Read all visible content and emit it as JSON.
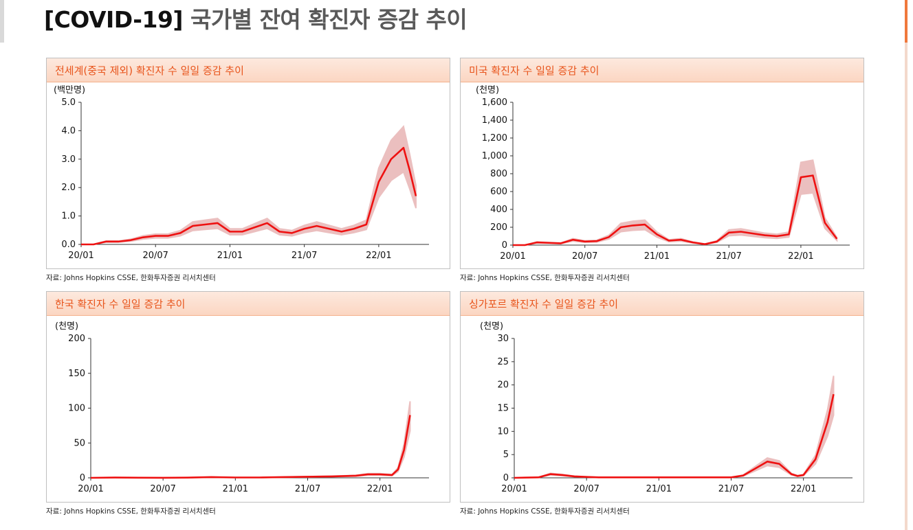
{
  "page": {
    "title_tag": "[COVID-19]",
    "title_rest": "국가별 잔여 확진자 증감 추이"
  },
  "colors": {
    "accent": "#f0783c",
    "line": "#ee1111",
    "band": "#e8b4b4",
    "title": "#e8541b"
  },
  "chart_data": [
    {
      "type": "line",
      "title": "전세계(중국 제외) 확진자 수 일일 증감 추이",
      "ylabel": "(백만명)",
      "ylim": [
        0,
        5
      ],
      "yticks": [
        "0.0",
        "1.0",
        "2.0",
        "3.0",
        "4.0",
        "5.0"
      ],
      "xticks": [
        "20/01",
        "20/07",
        "21/01",
        "21/07",
        "22/01"
      ],
      "source": "자료: Johns Hopkins CSSE, 한화투자증권 리서치센터",
      "series": [
        {
          "name": "",
          "x": [
            0,
            1,
            2,
            3,
            4,
            5,
            6,
            7,
            8,
            9,
            10,
            11,
            12,
            13,
            14,
            15,
            16,
            17,
            18,
            19,
            20,
            21,
            22,
            23,
            24,
            25,
            26,
            26.5,
            27
          ],
          "values": [
            0,
            0,
            0.1,
            0.1,
            0.15,
            0.25,
            0.3,
            0.3,
            0.4,
            0.65,
            0.7,
            0.75,
            0.45,
            0.45,
            0.6,
            0.75,
            0.45,
            0.4,
            0.55,
            0.65,
            0.55,
            0.45,
            0.55,
            0.7,
            2.2,
            3.0,
            3.4,
            2.6,
            1.7
          ]
        }
      ]
    },
    {
      "type": "line",
      "title": "미국 확진자 수 일일 증감 추이",
      "ylabel": "(천명)",
      "ylim": [
        0,
        1600
      ],
      "yticks": [
        "0",
        "200",
        "400",
        "600",
        "800",
        "1,000",
        "1,200",
        "1,400",
        "1,600"
      ],
      "xticks": [
        "20/01",
        "20/07",
        "21/01",
        "21/07",
        "22/01"
      ],
      "source": "자료: Johns Hopkins CSSE, 한화투자증권 리서치센터",
      "series": [
        {
          "name": "",
          "x": [
            0,
            1,
            2,
            3,
            4,
            5,
            6,
            7,
            8,
            9,
            10,
            11,
            12,
            13,
            14,
            15,
            16,
            17,
            18,
            19,
            20,
            21,
            22,
            23,
            24,
            25,
            26,
            27
          ],
          "values": [
            0,
            0,
            30,
            25,
            20,
            60,
            40,
            45,
            90,
            200,
            220,
            230,
            120,
            50,
            60,
            30,
            10,
            40,
            140,
            150,
            130,
            110,
            100,
            120,
            760,
            780,
            250,
            70
          ]
        }
      ]
    },
    {
      "type": "line",
      "title": "한국 확진자 수 일일 증감 추이",
      "ylabel": "(천명)",
      "ylim": [
        0,
        200
      ],
      "yticks": [
        "0",
        "50",
        "100",
        "150",
        "200"
      ],
      "xticks": [
        "20/01",
        "20/07",
        "21/01",
        "21/07",
        "22/01"
      ],
      "source": "자료: Johns Hopkins CSSE, 한화투자증권 리서치센터",
      "series": [
        {
          "name": "",
          "x": [
            0,
            2,
            4,
            6,
            8,
            10,
            12,
            14,
            16,
            18,
            20,
            22,
            23,
            24,
            25,
            25.5,
            26,
            26.5
          ],
          "values": [
            0,
            0.4,
            0.2,
            0.1,
            0.3,
            1,
            0.5,
            0.5,
            1,
            1.5,
            2,
            3,
            5,
            5,
            4,
            12,
            40,
            90
          ]
        }
      ]
    },
    {
      "type": "line",
      "title": "싱가포르 확진자 수 일일 증감 추이",
      "ylabel": "(천명)",
      "ylim": [
        0,
        30
      ],
      "yticks": [
        "0",
        "5",
        "10",
        "15",
        "20",
        "25",
        "30"
      ],
      "xticks": [
        "20/01",
        "20/07",
        "21/01",
        "21/07",
        "22/01"
      ],
      "source": "자료: Johns Hopkins CSSE, 한화투자증권 리서치센터",
      "series": [
        {
          "name": "",
          "x": [
            0,
            2,
            3,
            4,
            5,
            6,
            7,
            8,
            10,
            14,
            18,
            19,
            20,
            21,
            22,
            23,
            23.5,
            24,
            25,
            25.5,
            26,
            26.5
          ],
          "values": [
            0,
            0.1,
            0.8,
            0.6,
            0.3,
            0.2,
            0.1,
            0.1,
            0.1,
            0.1,
            0.1,
            0.5,
            2,
            3.5,
            3,
            0.8,
            0.4,
            0.6,
            4,
            8,
            12,
            18
          ]
        }
      ]
    }
  ]
}
